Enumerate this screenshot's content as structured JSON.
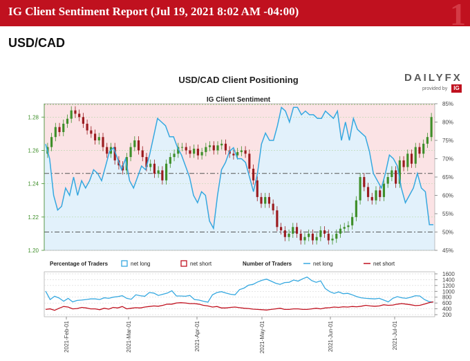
{
  "header": {
    "title": "IG Client Sentiment Report (Jul 19, 2021 8:02 AM -04:00)",
    "pair": "USD/CAD",
    "brand": "DAILYFX",
    "brand_sub": "provided by",
    "brand_badge": "IG",
    "colors": {
      "banner": "#c0111f",
      "banner_text": "#ffffff"
    }
  },
  "chart_data": [
    {
      "type": "line",
      "title": "USD/CAD Client Positioning",
      "subtitle": "IG Client Sentiment",
      "left_axis": {
        "ticks": [
          "1.20",
          "1.22",
          "1.24",
          "1.26",
          "1.28"
        ],
        "range": [
          1.2,
          1.288
        ]
      },
      "right_axis": {
        "ticks": [
          "45%",
          "50%",
          "55%",
          "60%",
          "65%",
          "70%",
          "75%",
          "80%",
          "85%"
        ],
        "range": [
          45,
          85
        ]
      },
      "reference_lines": {
        "net_long_pct": [
          50,
          66
        ]
      },
      "candles_close": [
        1.262,
        1.268,
        1.274,
        1.271,
        1.276,
        1.279,
        1.284,
        1.282,
        1.28,
        1.276,
        1.272,
        1.27,
        1.266,
        1.268,
        1.262,
        1.258,
        1.262,
        1.254,
        1.251,
        1.248,
        1.256,
        1.262,
        1.266,
        1.26,
        1.256,
        1.25,
        1.252,
        1.246,
        1.248,
        1.242,
        1.252,
        1.256,
        1.258,
        1.262,
        1.262,
        1.26,
        1.258,
        1.261,
        1.257,
        1.259,
        1.262,
        1.263,
        1.26,
        1.263,
        1.264,
        1.26,
        1.258,
        1.257,
        1.259,
        1.26,
        1.258,
        1.249,
        1.242,
        1.232,
        1.228,
        1.232,
        1.228,
        1.224,
        1.214,
        1.212,
        1.208,
        1.21,
        1.214,
        1.21,
        1.206,
        1.208,
        1.21,
        1.206,
        1.208,
        1.212,
        1.21,
        1.206,
        1.207,
        1.21,
        1.213,
        1.214,
        1.215,
        1.22,
        1.23,
        1.244,
        1.238,
        1.232,
        1.23,
        1.236,
        1.232,
        1.24,
        1.244,
        1.248,
        1.24,
        1.254,
        1.25,
        1.258,
        1.252,
        1.262,
        1.258,
        1.264,
        1.268,
        1.28
      ],
      "net_long_pct": [
        74,
        70,
        60,
        56,
        57,
        62,
        60,
        65,
        60,
        64,
        62,
        64,
        67,
        66,
        64,
        68,
        72,
        73,
        70,
        67,
        70,
        64,
        62,
        65,
        68,
        67,
        71,
        76,
        81,
        80,
        79,
        76,
        76,
        73,
        71,
        68,
        65,
        60,
        58,
        61,
        60,
        53,
        51,
        60,
        67,
        69,
        72,
        73,
        70,
        70,
        69,
        65,
        61,
        66,
        74,
        77,
        75,
        75,
        79,
        84,
        83,
        80,
        84,
        84,
        82,
        83,
        82,
        82,
        81,
        81,
        83,
        82,
        81,
        83,
        75,
        80,
        75,
        81,
        78,
        77,
        76,
        72,
        66,
        64,
        62,
        66,
        71,
        70,
        68,
        62,
        58,
        60,
        62,
        66,
        62,
        61,
        52,
        52
      ],
      "x_ticks": [
        "2021-Feb-01",
        "2021-Mar-01",
        "2021-Apr-01",
        "2021-May-01",
        "2021-Jun-01",
        "2021-Jul-01"
      ]
    },
    {
      "type": "line",
      "legend": {
        "pct_label": "Percentage of Traders",
        "num_label": "Number of Traders",
        "items": [
          "net long",
          "net short",
          "net long",
          "net short"
        ]
      },
      "right_axis": {
        "ticks": [
          "200",
          "400",
          "600",
          "800",
          "1000",
          "1200",
          "1400",
          "1600"
        ],
        "range": [
          200,
          1600
        ]
      },
      "series": [
        {
          "name": "net long",
          "color": "#35a8e0",
          "values": [
            1010,
            720,
            830,
            770,
            660,
            760,
            640,
            690,
            700,
            720,
            740,
            740,
            720,
            780,
            760,
            800,
            820,
            850,
            760,
            730,
            880,
            850,
            830,
            960,
            940,
            860,
            900,
            940,
            1020,
            840,
            840,
            830,
            860,
            720,
            700,
            660,
            630,
            880,
            960,
            990,
            940,
            900,
            880,
            1060,
            1110,
            1210,
            1240,
            1320,
            1380,
            1420,
            1350,
            1280,
            1240,
            1300,
            1310,
            1390,
            1350,
            1430,
            1490,
            1370,
            1310,
            1360,
            1100,
            990,
            930,
            980,
            920,
            930,
            880,
            820,
            780,
            760,
            750,
            740,
            760,
            700,
            640,
            760,
            820,
            780,
            760,
            800,
            850,
            840,
            720,
            650,
            630
          ]
        },
        {
          "name": "net short",
          "color": "#c0111f",
          "values": [
            380,
            400,
            350,
            420,
            480,
            460,
            400,
            410,
            450,
            430,
            400,
            400,
            370,
            420,
            390,
            450,
            430,
            480,
            400,
            420,
            440,
            430,
            460,
            480,
            500,
            490,
            520,
            560,
            560,
            600,
            610,
            600,
            580,
            580,
            560,
            520,
            500,
            460,
            480,
            430,
            430,
            450,
            460,
            440,
            420,
            410,
            390,
            380,
            370,
            360,
            380,
            400,
            420,
            380,
            380,
            400,
            400,
            380,
            380,
            400,
            420,
            400,
            430,
            440,
            460,
            450,
            470,
            460,
            480,
            470,
            490,
            520,
            500,
            490,
            500,
            540,
            520,
            530,
            560,
            580,
            560,
            540,
            510,
            520,
            560,
            610,
            640
          ]
        }
      ]
    }
  ]
}
